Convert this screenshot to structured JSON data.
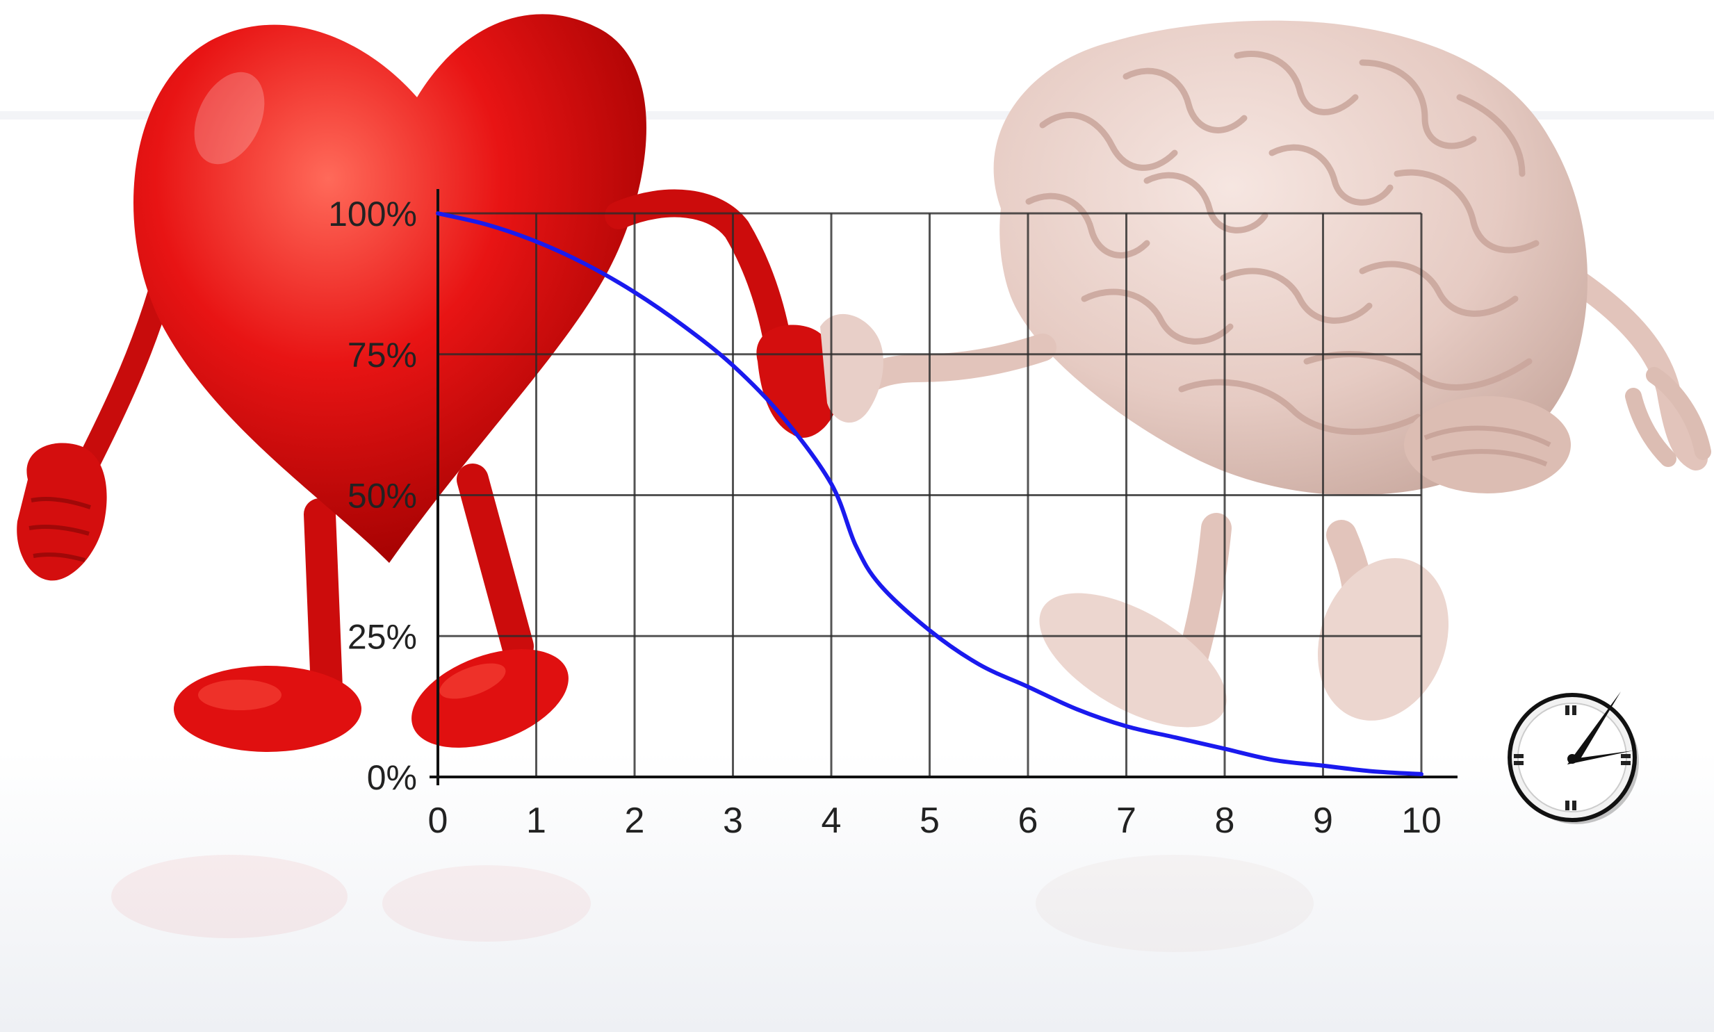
{
  "colors": {
    "curve": "#1a1aee",
    "grid": "#2a2a2a",
    "heart": "#e01010",
    "brain": "#e8cfc8",
    "background": "#ffffff"
  },
  "icons": [
    "heart-character",
    "brain-character",
    "clock-icon"
  ],
  "chart_data": {
    "type": "line",
    "title": "",
    "xlabel": "",
    "ylabel": "",
    "xlim": [
      0,
      10
    ],
    "ylim": [
      0,
      100
    ],
    "grid": true,
    "x_ticks": [
      "0",
      "1",
      "2",
      "3",
      "4",
      "5",
      "6",
      "7",
      "8",
      "9",
      "10"
    ],
    "y_ticks": [
      "0%",
      "25%",
      "50%",
      "75%",
      "100%"
    ],
    "series": [
      {
        "x": [
          0,
          0.5,
          1,
          1.5,
          2,
          2.5,
          3,
          3.5,
          4,
          4.25,
          4.5,
          5,
          5.5,
          6,
          6.5,
          7,
          7.5,
          8,
          8.5,
          9,
          9.5,
          10
        ],
        "y": [
          100,
          98,
          95,
          91,
          86,
          80,
          73,
          64,
          52,
          41,
          34,
          26,
          20,
          16,
          12,
          9,
          7,
          5,
          3,
          2,
          1,
          0.5
        ]
      }
    ]
  }
}
